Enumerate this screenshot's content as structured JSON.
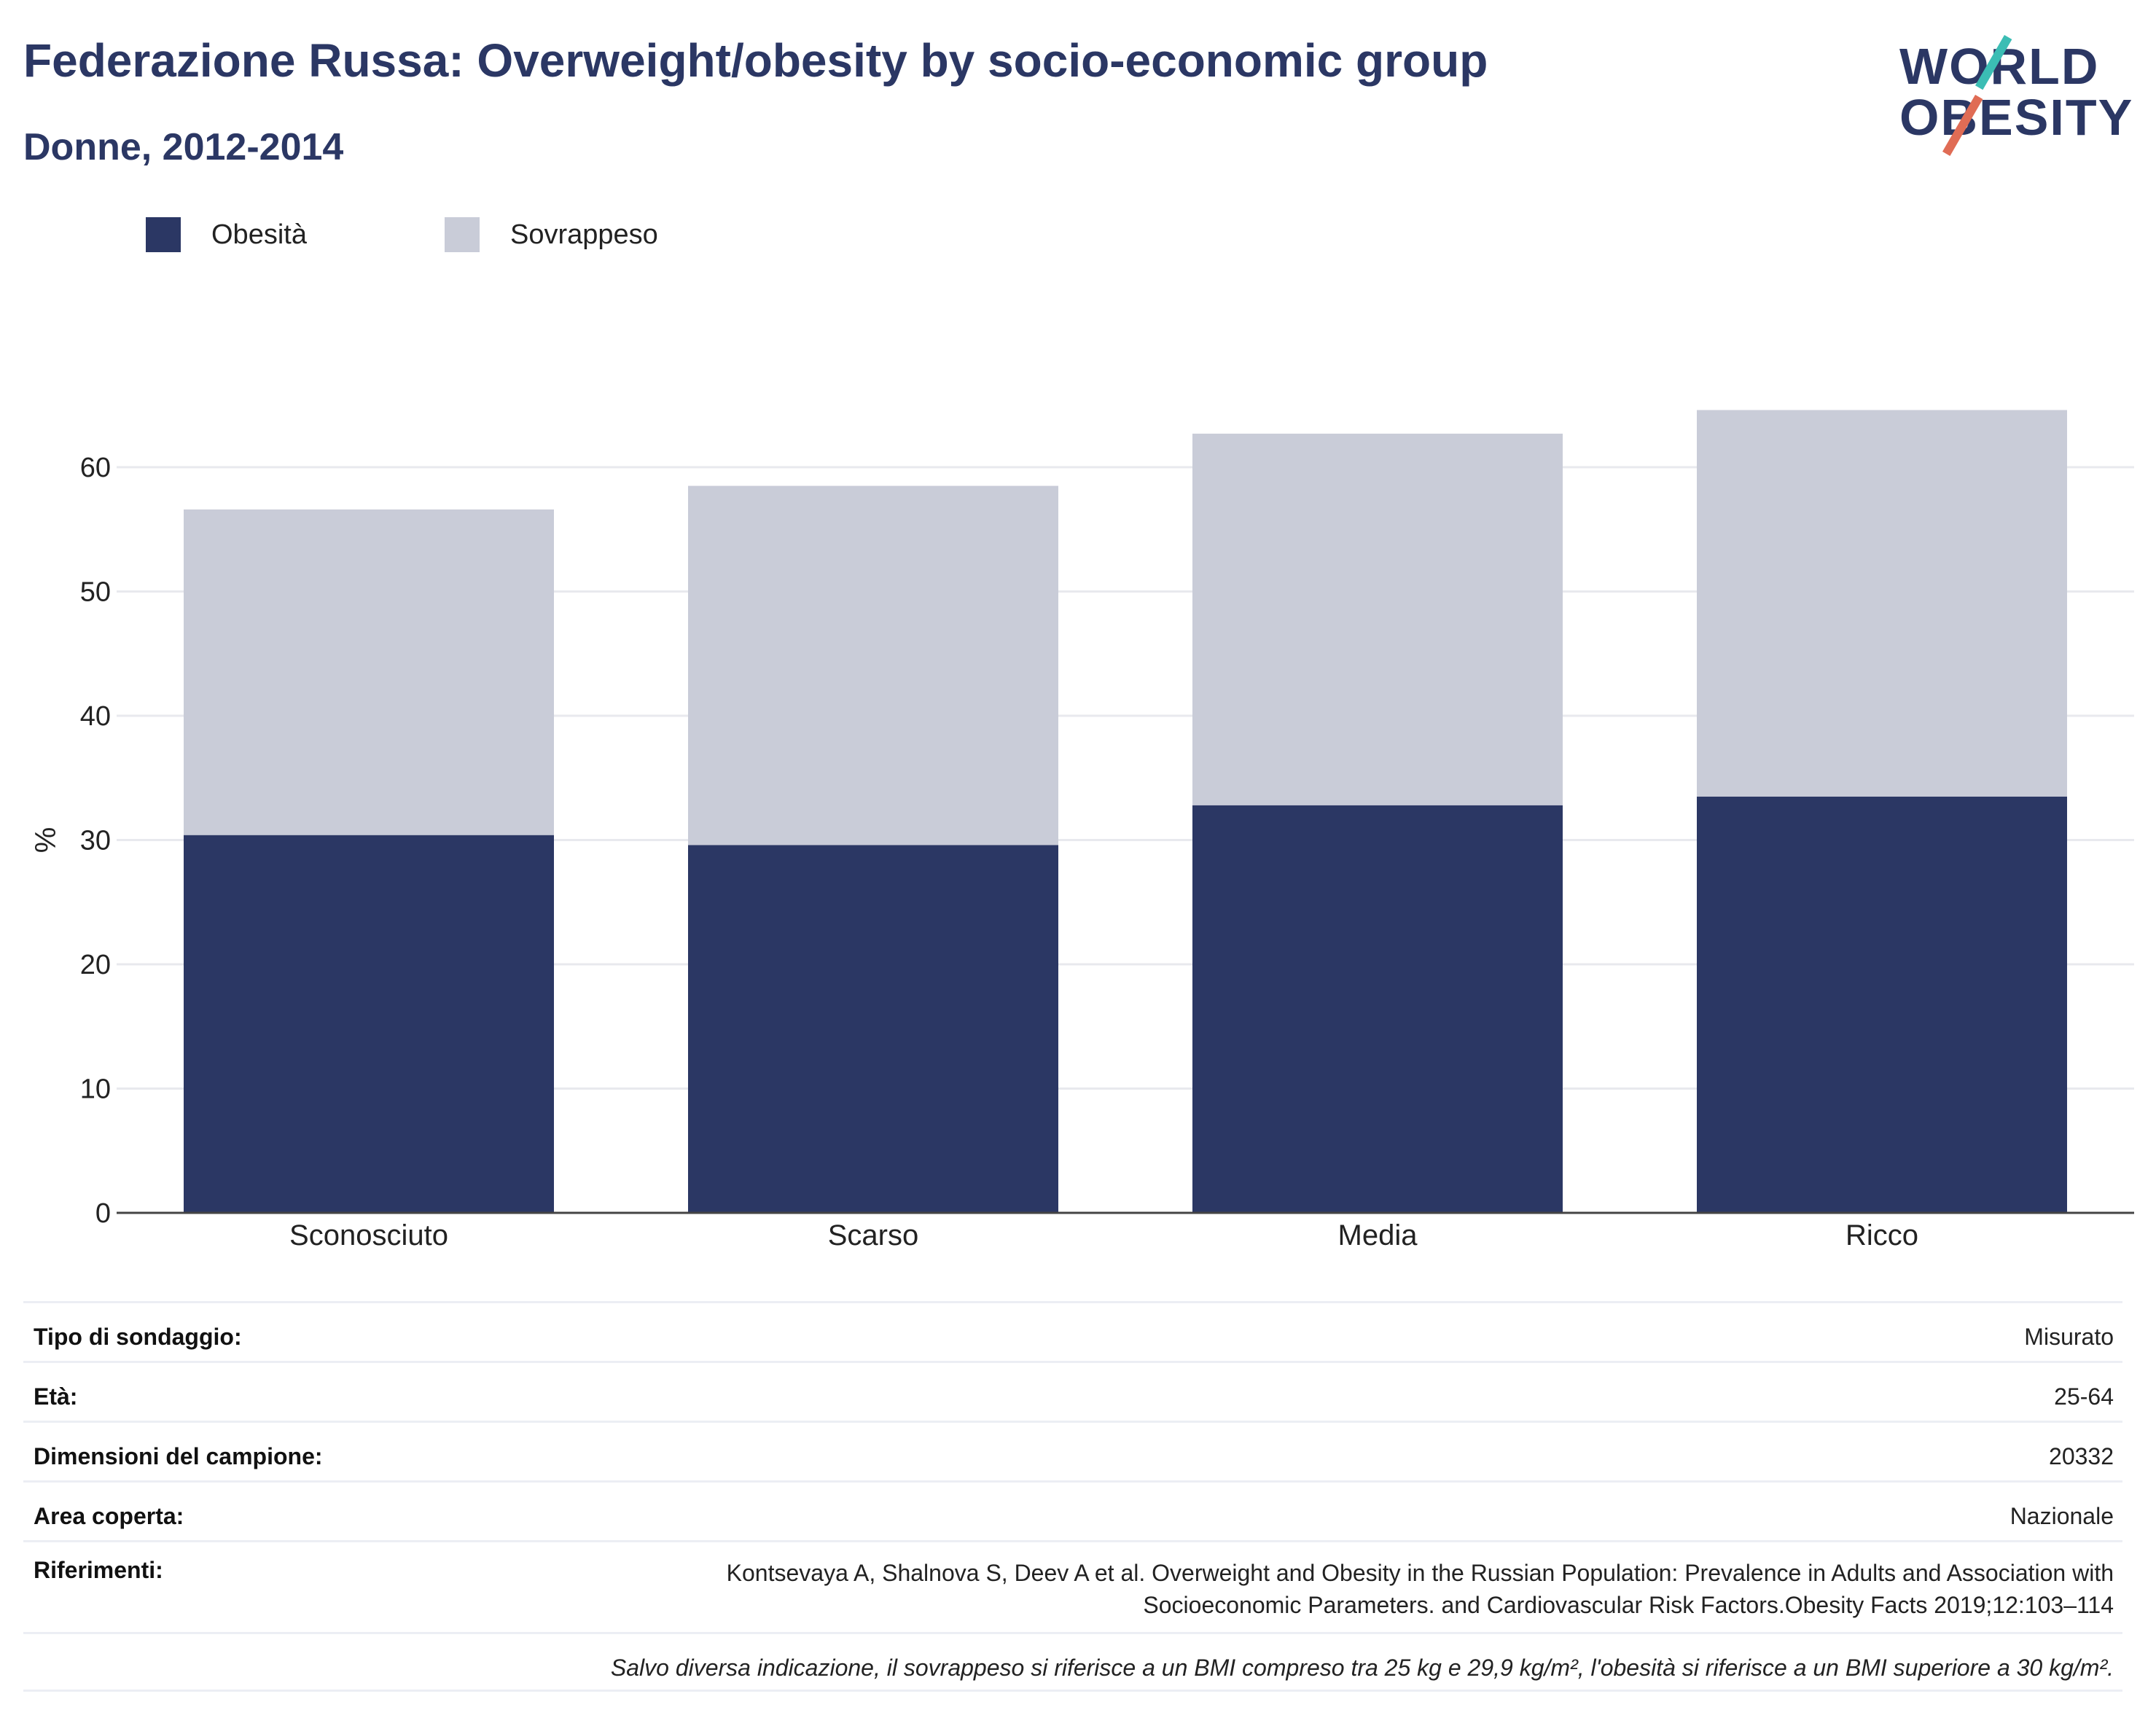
{
  "header": {
    "title": "Federazione Russa: Overweight/obesity by socio-economic group",
    "subtitle": "Donne, 2012-2014",
    "logo_line1": "WORLD",
    "logo_line2": "OBESITY"
  },
  "colors": {
    "obesity": "#2b3764",
    "overweight": "#c9ccd8",
    "grid": "#e8e9ee",
    "axis": "#444444"
  },
  "chart_data": {
    "type": "bar",
    "stacked": true,
    "categories": [
      "Sconosciuto",
      "Scarso",
      "Media",
      "Ricco"
    ],
    "series": [
      {
        "name": "Obesità",
        "values": [
          30.4,
          29.6,
          32.8,
          33.5
        ]
      },
      {
        "name": "Sovrappeso",
        "values": [
          26.2,
          28.9,
          29.9,
          31.1
        ]
      }
    ],
    "ylabel": "%",
    "xlabel": "",
    "ylim": [
      0,
      70
    ],
    "yticks": [
      0,
      10,
      20,
      30,
      40,
      50,
      60
    ],
    "grid": true,
    "legend_position": "top-left"
  },
  "info": {
    "rows": [
      {
        "key": "Tipo di sondaggio:",
        "value": "Misurato"
      },
      {
        "key": "Età:",
        "value": "25-64"
      },
      {
        "key": "Dimensioni del campione:",
        "value": "20332"
      },
      {
        "key": "Area coperta:",
        "value": "Nazionale"
      }
    ],
    "references_key": "Riferimenti:",
    "references_line1": "Kontsevaya A, Shalnova S, Deev A et al. Overweight and Obesity in the Russian Population: Prevalence in Adults and Association with",
    "references_line2": "Socioeconomic Parameters. and Cardiovascular Risk Factors.Obesity Facts 2019;12:103–114",
    "note": "Salvo diversa indicazione, il sovrappeso si riferisce a un BMI compreso tra 25 kg e 29,9 kg/m², l'obesità si riferisce a un BMI superiore a 30 kg/m²."
  }
}
